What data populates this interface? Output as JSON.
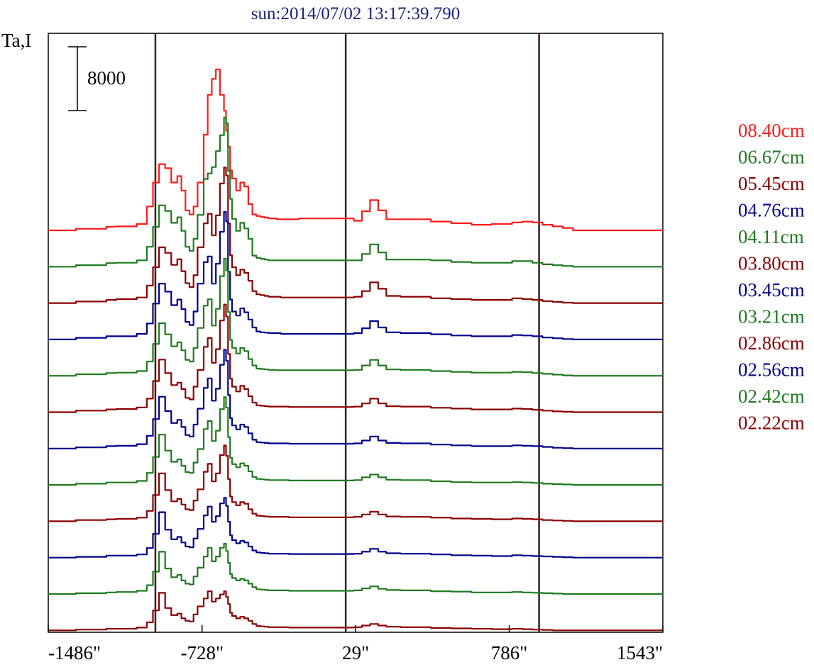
{
  "chart_data": {
    "type": "line",
    "title": "sun:2014/07/02 13:17:39.790",
    "ylabel": "Ta,I",
    "scale_bar_label": "8000",
    "x_ticks": [
      "-1486\"",
      "-728\"",
      "29\"",
      "786\"",
      "1543\""
    ],
    "x_tick_values": [
      -1486,
      -728,
      29,
      786,
      1543
    ],
    "xlim": [
      -1486,
      1543
    ],
    "vertical_markers": [
      -958,
      -20,
      933
    ],
    "y_offset_step": 4400,
    "x": [
      -1486,
      -1350,
      -1200,
      -1150,
      -1100,
      -1050,
      -1000,
      -970,
      -940,
      -910,
      -880,
      -850,
      -830,
      -810,
      -790,
      -770,
      -750,
      -720,
      -700,
      -680,
      -660,
      -640,
      -620,
      -610,
      -600,
      -590,
      -580,
      -560,
      -540,
      -520,
      -500,
      -480,
      -460,
      -440,
      -420,
      -400,
      -380,
      -360,
      -340,
      -300,
      -250,
      -200,
      -100,
      -20,
      20,
      60,
      100,
      140,
      180,
      250,
      400,
      500,
      600,
      700,
      800,
      850,
      900,
      950,
      1000,
      1050,
      1100,
      1200,
      1350,
      1543
    ],
    "series": [
      {
        "name": "08.40cm",
        "color": "#ff1a1a",
        "values": [
          0,
          200,
          450,
          500,
          500,
          800,
          3000,
          6000,
          8300,
          7800,
          6000,
          6800,
          5000,
          2500,
          2000,
          3000,
          6000,
          12000,
          17000,
          19000,
          20200,
          17000,
          15000,
          12500,
          10500,
          7500,
          6500,
          5000,
          6000,
          5500,
          3300,
          2000,
          1800,
          1700,
          1600,
          1500,
          1500,
          1400,
          1400,
          1400,
          1500,
          1500,
          1500,
          1500,
          1200,
          2400,
          3800,
          2500,
          1400,
          1400,
          1100,
          900,
          700,
          800,
          1000,
          1100,
          1000,
          700,
          500,
          300,
          0,
          0,
          0,
          0
        ]
      },
      {
        "name": "06.67cm",
        "color": "#1f7a1f",
        "values": [
          0,
          200,
          450,
          500,
          500,
          800,
          2500,
          5000,
          7700,
          7000,
          5500,
          6200,
          4500,
          2500,
          2000,
          3500,
          6500,
          11000,
          11700,
          12500,
          14500,
          16500,
          18700,
          18000,
          12000,
          8500,
          6000,
          4500,
          5500,
          4800,
          3500,
          1400,
          1100,
          1000,
          900,
          800,
          800,
          800,
          800,
          800,
          800,
          800,
          800,
          800,
          800,
          1600,
          2800,
          1800,
          900,
          900,
          800,
          600,
          500,
          500,
          700,
          700,
          500,
          300,
          200,
          100,
          0,
          0,
          0,
          0
        ]
      },
      {
        "name": "05.45cm",
        "color": "#8b0000",
        "values": [
          0,
          200,
          400,
          500,
          500,
          700,
          2200,
          4500,
          7000,
          6300,
          4800,
          5500,
          4000,
          2500,
          2000,
          3500,
          7000,
          10000,
          11200,
          8500,
          11000,
          15000,
          17000,
          16000,
          10000,
          6000,
          4500,
          3500,
          4200,
          3800,
          2800,
          1500,
          1100,
          1000,
          900,
          800,
          800,
          800,
          700,
          700,
          700,
          700,
          700,
          700,
          800,
          1500,
          2600,
          1800,
          900,
          800,
          600,
          500,
          400,
          400,
          600,
          500,
          400,
          250,
          150,
          50,
          0,
          0,
          0,
          0
        ]
      },
      {
        "name": "04.76cm",
        "color": "#00008b",
        "values": [
          0,
          200,
          400,
          400,
          400,
          700,
          2000,
          4500,
          7000,
          6000,
          4300,
          5000,
          3800,
          2200,
          1800,
          3500,
          7000,
          9700,
          10400,
          7000,
          9500,
          13500,
          16000,
          14800,
          8500,
          5000,
          3500,
          3000,
          3900,
          3400,
          2500,
          1500,
          1000,
          900,
          850,
          800,
          800,
          800,
          700,
          700,
          700,
          700,
          700,
          700,
          800,
          1400,
          2300,
          1500,
          900,
          800,
          650,
          500,
          400,
          400,
          550,
          500,
          400,
          250,
          150,
          50,
          0,
          0,
          0,
          0
        ]
      },
      {
        "name": "04.11cm",
        "color": "#1f7a1f",
        "values": [
          0,
          200,
          350,
          400,
          400,
          600,
          1800,
          4000,
          6600,
          5200,
          3700,
          4200,
          3200,
          2000,
          1800,
          3500,
          6000,
          8800,
          9600,
          6300,
          8400,
          12500,
          14700,
          13200,
          8000,
          4500,
          3500,
          2800,
          3500,
          3100,
          2100,
          1300,
          900,
          850,
          800,
          750,
          750,
          700,
          700,
          700,
          700,
          700,
          700,
          700,
          750,
          1300,
          2000,
          1300,
          800,
          750,
          600,
          500,
          400,
          400,
          500,
          450,
          350,
          250,
          150,
          50,
          0,
          0,
          0,
          0
        ]
      },
      {
        "name": "03.80cm",
        "color": "#8b0000",
        "values": [
          0,
          200,
          350,
          400,
          400,
          600,
          1700,
          3900,
          6600,
          4900,
          3400,
          3700,
          2900,
          1800,
          1600,
          3200,
          5300,
          8200,
          9300,
          6200,
          7900,
          11500,
          13500,
          12000,
          7300,
          4200,
          3200,
          2600,
          3300,
          2900,
          2000,
          1200,
          850,
          800,
          750,
          700,
          700,
          700,
          700,
          650,
          650,
          650,
          650,
          650,
          700,
          1100,
          1700,
          1100,
          750,
          700,
          550,
          450,
          350,
          350,
          450,
          400,
          300,
          200,
          100,
          50,
          0,
          0,
          0,
          0
        ]
      },
      {
        "name": "03.45cm",
        "color": "#00008b",
        "values": [
          0,
          150,
          300,
          350,
          350,
          550,
          1600,
          3700,
          6500,
          4700,
          3200,
          3600,
          2700,
          1700,
          1500,
          3000,
          5000,
          7600,
          8800,
          6000,
          7500,
          10500,
          12400,
          11000,
          6700,
          3800,
          2900,
          2400,
          3000,
          2700,
          1900,
          1100,
          800,
          750,
          700,
          650,
          650,
          650,
          650,
          600,
          600,
          600,
          600,
          600,
          650,
          1000,
          1500,
          1000,
          700,
          650,
          500,
          400,
          300,
          300,
          400,
          350,
          300,
          200,
          100,
          50,
          0,
          0,
          0,
          0
        ]
      },
      {
        "name": "03.21cm",
        "color": "#1f7a1f",
        "values": [
          0,
          150,
          300,
          300,
          300,
          500,
          1500,
          3500,
          6300,
          4300,
          2900,
          3200,
          2400,
          1600,
          1500,
          2800,
          4500,
          7000,
          8000,
          5500,
          6800,
          9500,
          11000,
          9700,
          6000,
          3400,
          2600,
          2200,
          2700,
          2400,
          1700,
          1000,
          750,
          700,
          650,
          600,
          600,
          600,
          600,
          550,
          550,
          550,
          550,
          550,
          600,
          950,
          1300,
          950,
          650,
          600,
          450,
          350,
          300,
          300,
          350,
          300,
          250,
          150,
          100,
          50,
          0,
          0,
          0,
          0
        ]
      },
      {
        "name": "02.86cm",
        "color": "#8b0000",
        "values": [
          0,
          150,
          250,
          300,
          300,
          450,
          1300,
          3300,
          6000,
          3900,
          2500,
          2800,
          2100,
          1500,
          1400,
          2600,
          4000,
          6200,
          7200,
          5000,
          6000,
          8300,
          9500,
          8200,
          5300,
          3100,
          2400,
          2000,
          2400,
          2200,
          1500,
          950,
          700,
          650,
          600,
          550,
          550,
          550,
          550,
          500,
          500,
          500,
          500,
          500,
          550,
          850,
          1200,
          850,
          600,
          550,
          450,
          350,
          300,
          250,
          350,
          300,
          250,
          150,
          100,
          50,
          0,
          0,
          0,
          0
        ]
      },
      {
        "name": "02.56cm",
        "color": "#00008b",
        "values": [
          0,
          100,
          250,
          250,
          250,
          400,
          1200,
          3000,
          5700,
          3500,
          2300,
          2600,
          1900,
          1400,
          1300,
          2400,
          3600,
          5300,
          6400,
          4500,
          5200,
          6800,
          7500,
          6500,
          4500,
          2800,
          2200,
          1800,
          2100,
          1900,
          1400,
          900,
          650,
          600,
          550,
          500,
          500,
          500,
          500,
          450,
          450,
          450,
          450,
          450,
          500,
          750,
          1100,
          750,
          550,
          500,
          400,
          300,
          250,
          200,
          300,
          250,
          200,
          150,
          100,
          50,
          0,
          0,
          0,
          0
        ]
      },
      {
        "name": "02.42cm",
        "color": "#1f7a1f",
        "values": [
          0,
          100,
          200,
          250,
          250,
          400,
          1100,
          2800,
          5300,
          3200,
          2100,
          2400,
          1700,
          1300,
          1200,
          2200,
          3300,
          4700,
          5800,
          4100,
          4700,
          5800,
          6300,
          5400,
          3900,
          2500,
          2000,
          1700,
          1900,
          1700,
          1300,
          850,
          600,
          550,
          500,
          450,
          450,
          450,
          450,
          400,
          400,
          400,
          400,
          400,
          450,
          700,
          950,
          650,
          500,
          450,
          350,
          300,
          200,
          200,
          250,
          200,
          150,
          100,
          50,
          0,
          0,
          0,
          0,
          0
        ]
      },
      {
        "name": "02.22cm",
        "color": "#8b0000",
        "values": [
          0,
          100,
          200,
          200,
          200,
          350,
          1000,
          2500,
          4700,
          2800,
          1900,
          2100,
          1500,
          1200,
          1100,
          2000,
          3000,
          4000,
          4900,
          3600,
          4000,
          4500,
          4900,
          4200,
          3300,
          2200,
          1800,
          1500,
          1700,
          1500,
          1200,
          800,
          550,
          500,
          450,
          400,
          400,
          400,
          400,
          350,
          350,
          350,
          350,
          350,
          400,
          600,
          800,
          600,
          450,
          400,
          300,
          250,
          200,
          150,
          200,
          150,
          100,
          50,
          0,
          0,
          0,
          0,
          0,
          0
        ]
      }
    ]
  }
}
